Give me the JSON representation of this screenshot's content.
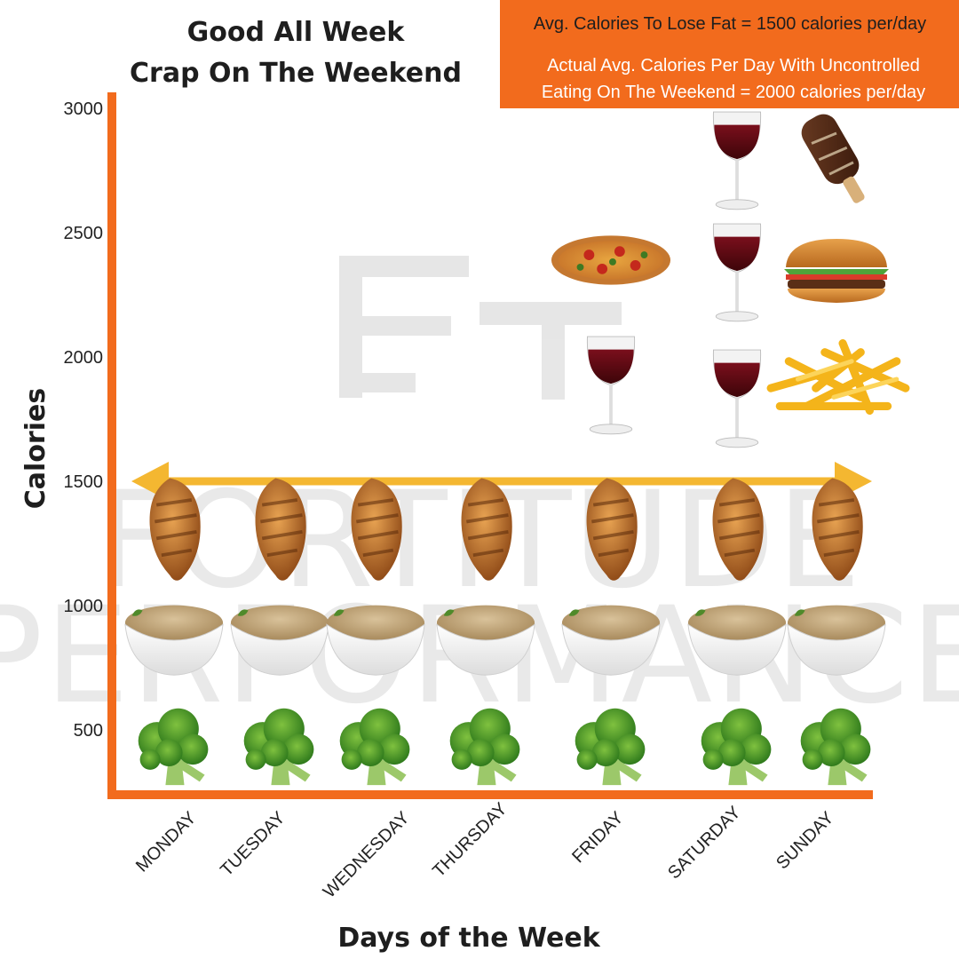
{
  "chart_data": {
    "type": "bar",
    "title": [
      "Good All Week",
      "Crap On The Weekend"
    ],
    "xlabel": "Days of the Week",
    "ylabel": "Calories",
    "yticks": [
      500,
      1000,
      1500,
      2000,
      2500,
      3000
    ],
    "categories": [
      "MONDAY",
      "TUESDAY",
      "WEDNESDAY",
      "THURSDAY",
      "FRIDAY",
      "SATURDAY",
      "SUNDAY"
    ],
    "daily_calories": [
      1500,
      1500,
      1500,
      1500,
      2400,
      3000,
      3000
    ],
    "target_line": {
      "value": 1500,
      "color": "#f4b731"
    },
    "stacks": [
      [
        "broccoli",
        "rice-bowl",
        "chicken-breast"
      ],
      [
        "broccoli",
        "rice-bowl",
        "chicken-breast"
      ],
      [
        "broccoli",
        "rice-bowl",
        "chicken-breast"
      ],
      [
        "broccoli",
        "rice-bowl",
        "chicken-breast"
      ],
      [
        "broccoli",
        "rice-bowl",
        "chicken-breast",
        "wine-glass",
        "pizza"
      ],
      [
        "broccoli",
        "rice-bowl",
        "chicken-breast",
        "wine-glass",
        "wine-glass",
        "wine-glass"
      ],
      [
        "broccoli",
        "rice-bowl",
        "chicken-breast",
        "fries",
        "burger",
        "ice-cream-bar"
      ]
    ]
  },
  "info_box": {
    "line1": "Avg. Calories To Lose Fat = 1500 calories per/day",
    "line2": "Actual Avg. Calories Per Day With Uncontrolled",
    "line3": "Eating On The Weekend = 2000 calories per/day"
  },
  "watermark": {
    "word1": "FORTITUDE",
    "word2": "PERFORMANCE"
  },
  "colors": {
    "axis": "#f26b1d",
    "info_box": "#f26b1d",
    "target_line": "#f4b731",
    "watermark": "#cfcfcf"
  }
}
